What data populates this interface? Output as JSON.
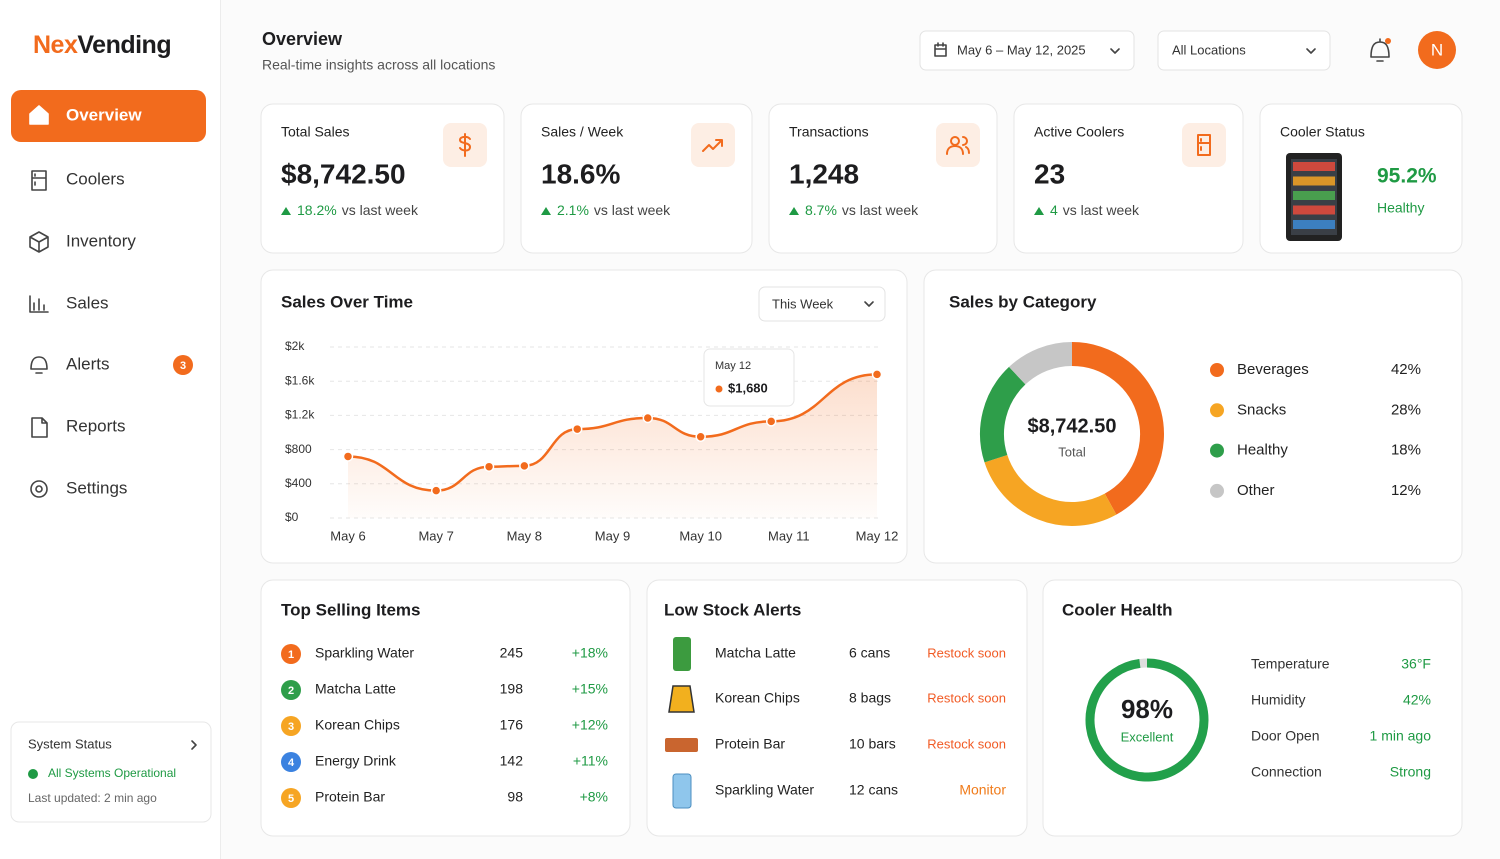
{
  "sidebar": {
    "logo_prefix": "Nex",
    "logo_suffix": "Vending",
    "nav": [
      "Overview",
      "Coolers",
      "Inventory",
      "Sales",
      "Alerts",
      "Reports",
      "Settings"
    ],
    "alerts_badge": 3,
    "system_status": {
      "title": "System Status",
      "status": "All Systems Operational",
      "updated": "Last updated: 2 min ago"
    }
  },
  "header": {
    "title": "Overview",
    "subtitle": "Real-time insights across all locations",
    "date_range": "May 6 – May 12, 2025",
    "location": "All Locations",
    "avatar": "N"
  },
  "kpis": [
    {
      "title": "Total Sales",
      "value": "$8,742.50",
      "delta": "18.2%",
      "note": "vs last week"
    },
    {
      "title": "Sales / Week",
      "value": "18.6%",
      "delta": "2.1%",
      "note": "vs last week"
    },
    {
      "title": "Transactions",
      "value": "1,248",
      "delta": "8.7%",
      "note": "vs last week"
    },
    {
      "title": "Active Coolers",
      "value": 23,
      "delta": 4,
      "note": "vs last week"
    }
  ],
  "cooler_status": {
    "title": "Cooler Status",
    "value": "95.2%",
    "label": "Healthy"
  },
  "sales_over_time": {
    "type": "line",
    "title": "Sales Over Time",
    "filter": "This Week",
    "x": [
      0,
      1,
      1.6,
      2,
      2.6,
      3.4,
      4,
      4.8,
      6
    ],
    "values": [
      720,
      320,
      600,
      610,
      1040,
      1170,
      950,
      1130,
      1680
    ],
    "color": "#f26b1d",
    "xlim": [
      0,
      6
    ],
    "xticks": [
      {
        "value": 0,
        "label": "May 6"
      },
      {
        "value": 1,
        "label": "May 7"
      },
      {
        "value": 2,
        "label": "May 8"
      },
      {
        "value": 3,
        "label": "May 9"
      },
      {
        "value": 4,
        "label": "May 10"
      },
      {
        "value": 5,
        "label": "May 11"
      },
      {
        "value": 6,
        "label": "May 12"
      }
    ],
    "ylim": [
      0,
      2000
    ],
    "yticks": [
      {
        "value": 0,
        "label": "$0"
      },
      {
        "value": 400,
        "label": "$400"
      },
      {
        "value": 800,
        "label": "$800"
      },
      {
        "value": 1200,
        "label": "$1.2k"
      },
      {
        "value": 1600,
        "label": "$1.6k"
      },
      {
        "value": 2000,
        "label": "$2k"
      }
    ],
    "grid": true,
    "tooltip": {
      "title": "May 12",
      "text": "$1,680"
    }
  },
  "sales_by_category": {
    "type": "donut",
    "title": "Sales by Category",
    "categories": [
      "Beverages",
      "Snacks",
      "Healthy",
      "Other"
    ],
    "values": [
      42,
      28,
      18,
      12
    ],
    "value_labels": [
      "42%",
      "28%",
      "18%",
      "12%"
    ],
    "colors": [
      "#f26b1d",
      "#f6a523",
      "#2e9e4a",
      "#c6c6c6"
    ],
    "center_value": "$8,742.50",
    "center_label": "Total"
  },
  "top_selling": {
    "title": "Top Selling Items",
    "rows": [
      [
        1,
        "Sparkling Water",
        245,
        "+18%"
      ],
      [
        2,
        "Matcha Latte",
        198,
        "+15%"
      ],
      [
        3,
        "Korean Chips",
        176,
        "+12%"
      ],
      [
        4,
        "Energy Drink",
        142,
        "+11%"
      ],
      [
        5,
        "Protein Bar",
        98,
        "+8%"
      ]
    ]
  },
  "low_stock": {
    "title": "Low Stock Alerts",
    "rows": [
      [
        "Matcha Latte",
        "6 cans",
        "Restock soon"
      ],
      [
        "Korean Chips",
        "8 bags",
        "Restock soon"
      ],
      [
        "Protein Bar",
        "10 bars",
        "Restock soon"
      ],
      [
        "Sparkling Water",
        "12 cans",
        "Monitor"
      ]
    ]
  },
  "cooler_health": {
    "title": "Cooler Health",
    "type": "gauge",
    "value": 98,
    "value_label": "98%",
    "range": [
      0,
      100
    ],
    "label": "Excellent",
    "stats": [
      [
        "Temperature",
        "36°F"
      ],
      [
        "Humidity",
        "42%"
      ],
      [
        "Door Open",
        "1 min ago"
      ],
      [
        "Connection",
        "Strong"
      ]
    ]
  }
}
